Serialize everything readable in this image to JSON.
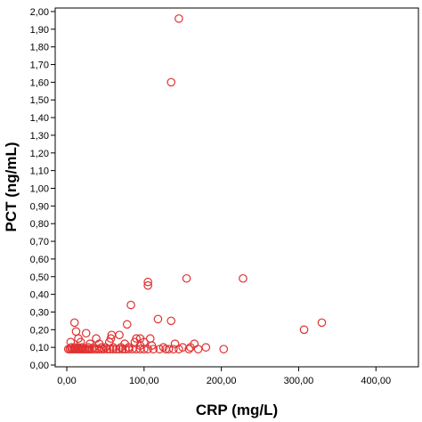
{
  "chart_data": {
    "type": "scatter",
    "title": "",
    "xlabel": "CRP (mg/L)",
    "ylabel": "PCT (ng/mL)",
    "xlim": [
      -15,
      455
    ],
    "ylim": [
      -0.01,
      2.02
    ],
    "x_ticks": [
      0,
      100,
      200,
      300,
      400
    ],
    "x_tick_labels": [
      "0,00",
      "100,00",
      "200,00",
      "300,00",
      "400,00"
    ],
    "y_ticks": [
      0,
      0.1,
      0.2,
      0.3,
      0.4,
      0.5,
      0.6,
      0.7,
      0.8,
      0.9,
      1.0,
      1.1,
      1.2,
      1.3,
      1.4,
      1.5,
      1.6,
      1.7,
      1.8,
      1.9,
      2.0
    ],
    "y_tick_labels": [
      "0,00",
      "0,10",
      "0,20",
      "0,30",
      "0,40",
      "0,50",
      "0,60",
      "0,70",
      "0,80",
      "0,90",
      "1,00",
      "1,10",
      "1,20",
      "1,30",
      "1,40",
      "1,50",
      "1,60",
      "1,70",
      "1,80",
      "1,90",
      "2,00"
    ],
    "grid": false,
    "marker": "open-circle",
    "marker_color": "#e03030",
    "series": [
      {
        "name": "",
        "points": [
          [
            145,
            1.96
          ],
          [
            135,
            1.6
          ],
          [
            105,
            0.47
          ],
          [
            105,
            0.45
          ],
          [
            155,
            0.49
          ],
          [
            228,
            0.49
          ],
          [
            83,
            0.34
          ],
          [
            10,
            0.24
          ],
          [
            135,
            0.25
          ],
          [
            330,
            0.24
          ],
          [
            118,
            0.26
          ],
          [
            78,
            0.23
          ],
          [
            307,
            0.2
          ],
          [
            12,
            0.19
          ],
          [
            25,
            0.18
          ],
          [
            58,
            0.17
          ],
          [
            68,
            0.17
          ],
          [
            15,
            0.15
          ],
          [
            38,
            0.15
          ],
          [
            57,
            0.15
          ],
          [
            90,
            0.15
          ],
          [
            95,
            0.15
          ],
          [
            108,
            0.15
          ],
          [
            5,
            0.13
          ],
          [
            18,
            0.13
          ],
          [
            30,
            0.12
          ],
          [
            42,
            0.12
          ],
          [
            55,
            0.13
          ],
          [
            75,
            0.12
          ],
          [
            88,
            0.13
          ],
          [
            100,
            0.13
          ],
          [
            140,
            0.12
          ],
          [
            165,
            0.12
          ],
          [
            6,
            0.1
          ],
          [
            10,
            0.1
          ],
          [
            15,
            0.1
          ],
          [
            20,
            0.1
          ],
          [
            28,
            0.1
          ],
          [
            35,
            0.1
          ],
          [
            45,
            0.1
          ],
          [
            50,
            0.1
          ],
          [
            60,
            0.1
          ],
          [
            70,
            0.1
          ],
          [
            80,
            0.1
          ],
          [
            95,
            0.11
          ],
          [
            110,
            0.11
          ],
          [
            125,
            0.1
          ],
          [
            150,
            0.1
          ],
          [
            160,
            0.1
          ],
          [
            180,
            0.1
          ],
          [
            2,
            0.09
          ],
          [
            4,
            0.09
          ],
          [
            6,
            0.09
          ],
          [
            8,
            0.09
          ],
          [
            10,
            0.09
          ],
          [
            12,
            0.09
          ],
          [
            14,
            0.09
          ],
          [
            16,
            0.09
          ],
          [
            18,
            0.09
          ],
          [
            20,
            0.09
          ],
          [
            22,
            0.09
          ],
          [
            24,
            0.09
          ],
          [
            26,
            0.09
          ],
          [
            28,
            0.09
          ],
          [
            30,
            0.09
          ],
          [
            33,
            0.09
          ],
          [
            36,
            0.09
          ],
          [
            39,
            0.09
          ],
          [
            42,
            0.09
          ],
          [
            45,
            0.09
          ],
          [
            48,
            0.09
          ],
          [
            52,
            0.09
          ],
          [
            56,
            0.09
          ],
          [
            60,
            0.09
          ],
          [
            64,
            0.09
          ],
          [
            68,
            0.09
          ],
          [
            72,
            0.09
          ],
          [
            76,
            0.09
          ],
          [
            80,
            0.09
          ],
          [
            85,
            0.09
          ],
          [
            90,
            0.09
          ],
          [
            95,
            0.09
          ],
          [
            100,
            0.09
          ],
          [
            105,
            0.09
          ],
          [
            112,
            0.09
          ],
          [
            120,
            0.09
          ],
          [
            128,
            0.09
          ],
          [
            132,
            0.09
          ],
          [
            138,
            0.09
          ],
          [
            145,
            0.09
          ],
          [
            158,
            0.09
          ],
          [
            170,
            0.09
          ],
          [
            203,
            0.09
          ]
        ]
      }
    ]
  }
}
